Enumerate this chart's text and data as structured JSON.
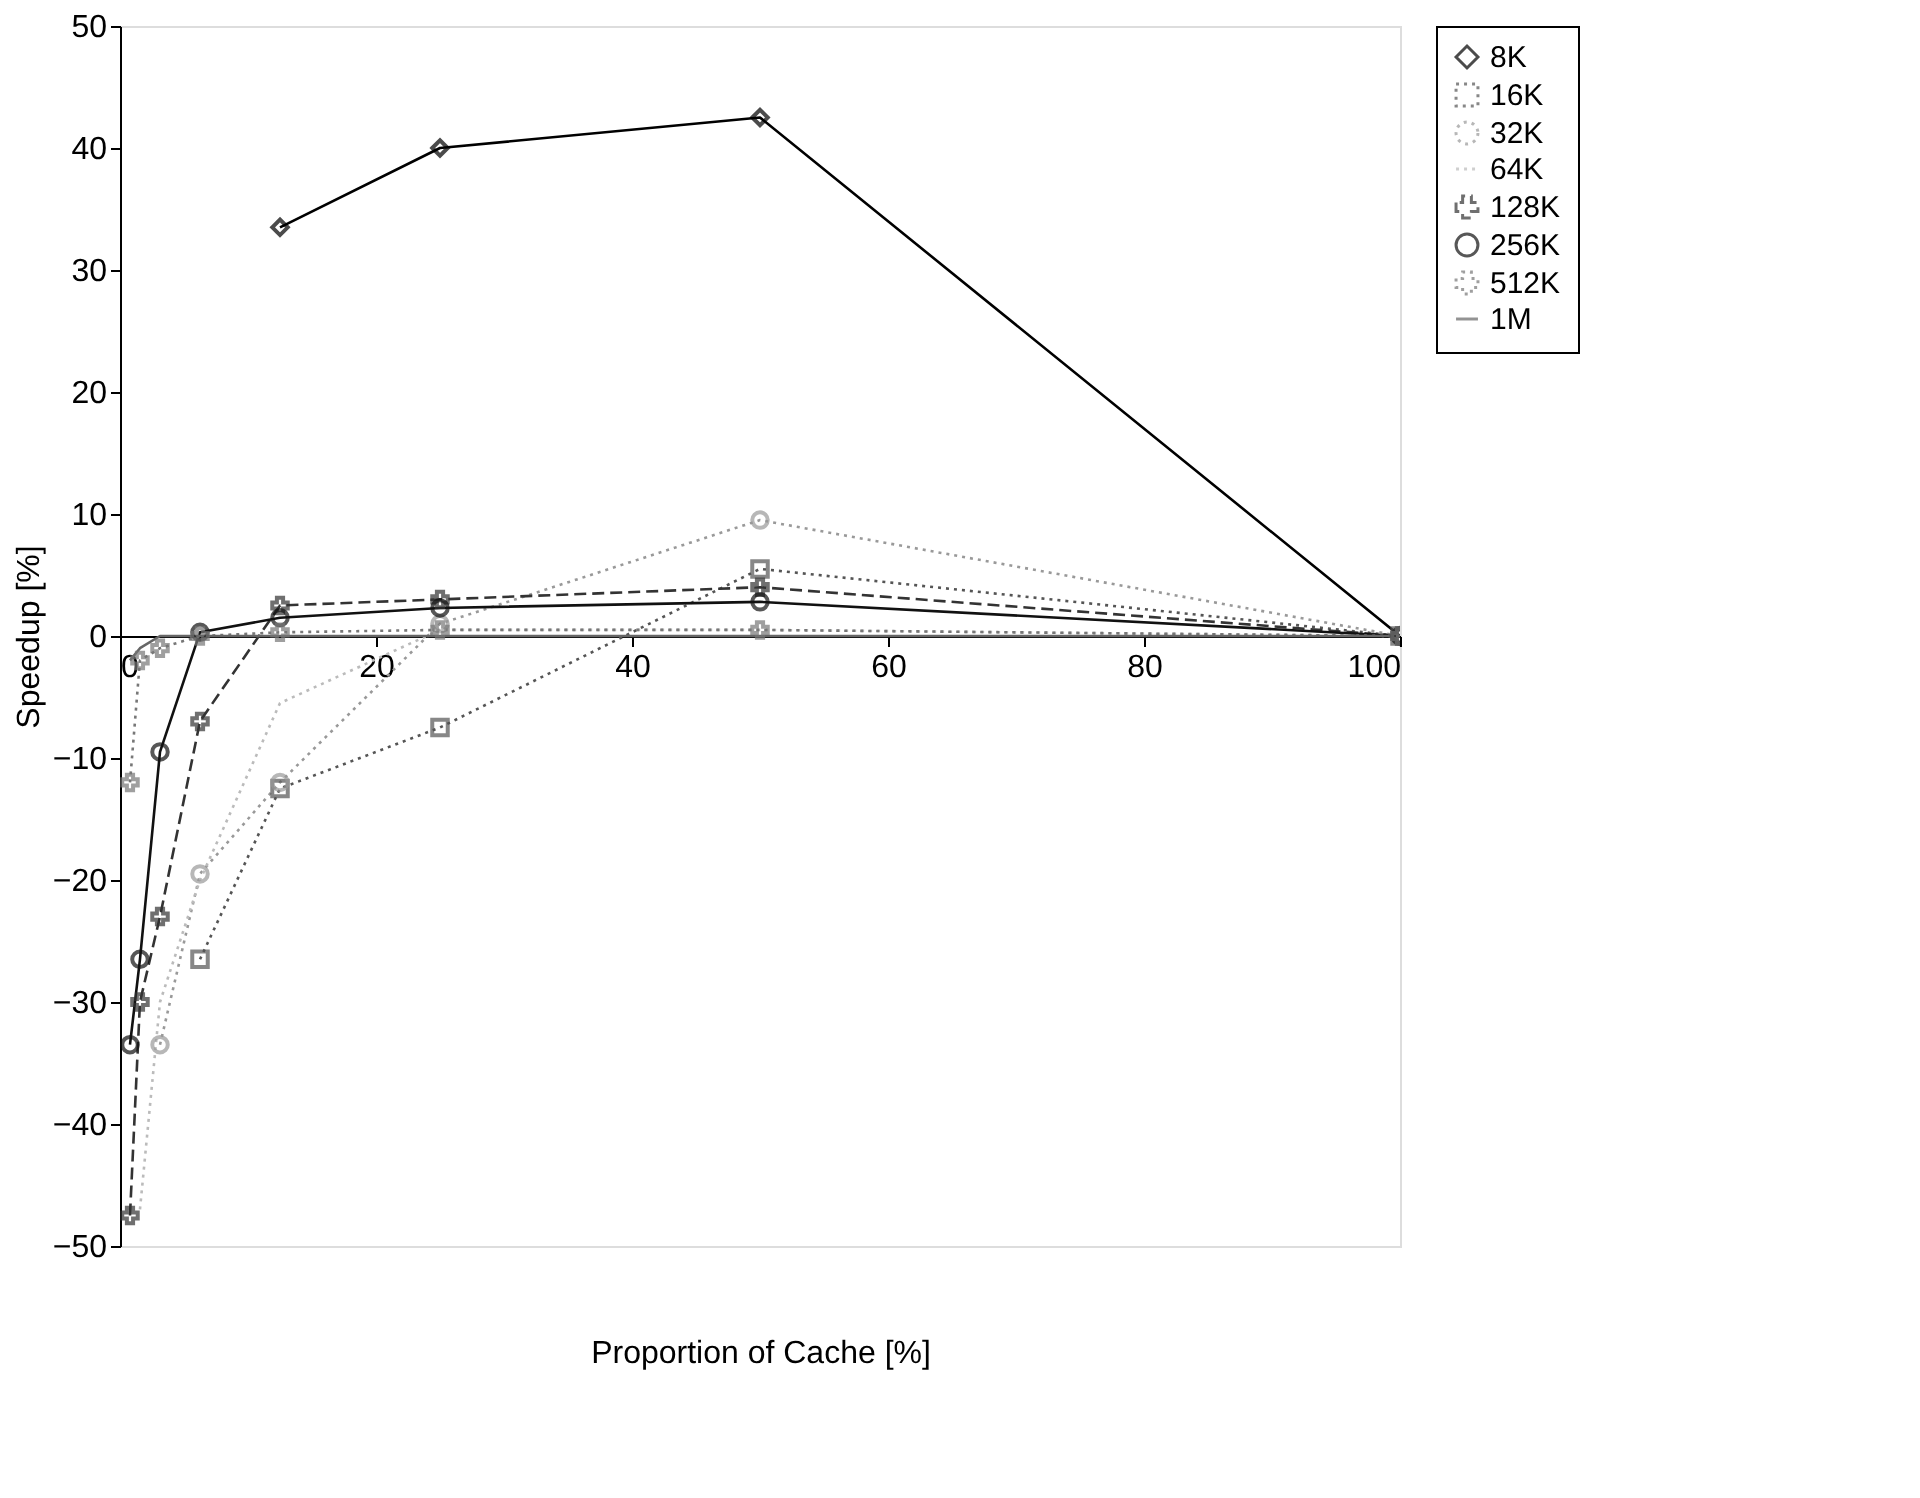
{
  "chart_data": {
    "type": "line",
    "xlabel": "Proportion of Cache [%]",
    "ylabel": "Speedup [%]",
    "xlim": [
      0,
      100
    ],
    "xticks": [
      0,
      20,
      40,
      60,
      80,
      100
    ],
    "ylim": [
      -50,
      50
    ],
    "yticks": [
      -50,
      -40,
      -30,
      -20,
      -10,
      0,
      10,
      20,
      30,
      40,
      50
    ],
    "grid": false,
    "legend": "right",
    "x": [
      0.78,
      1.56,
      3.125,
      6.25,
      12.5,
      25,
      50,
      100
    ],
    "series": [
      {
        "name": "8K",
        "color": "#000000",
        "marker": "diamond",
        "line_style": "solid",
        "values": [
          null,
          null,
          null,
          null,
          33.5,
          40,
          42.5,
          0
        ]
      },
      {
        "name": "16K",
        "color": "#555555",
        "marker": "square",
        "line_style": "dotted",
        "values": [
          null,
          null,
          null,
          -26.5,
          -12.5,
          -7.5,
          5.5,
          0
        ]
      },
      {
        "name": "32K",
        "color": "#999999",
        "marker": "circle",
        "line_style": "dotted",
        "values": [
          null,
          null,
          -33.5,
          -19.5,
          -12,
          1,
          9.5,
          0
        ]
      },
      {
        "name": "64K",
        "color": "#bbbbbb",
        "marker": "none",
        "line_style": "dotted",
        "values": [
          null,
          -47,
          -30,
          -20,
          -5.5,
          0.5,
          0.5,
          0
        ]
      },
      {
        "name": "128K",
        "color": "#333333",
        "marker": "cross",
        "line_style": "dashed",
        "values": [
          -47.5,
          -30,
          -23,
          -7,
          2.5,
          3,
          4,
          0
        ]
      },
      {
        "name": "256K",
        "color": "#111111",
        "marker": "circle",
        "line_style": "solid",
        "values": [
          -33.5,
          -26.5,
          -9.5,
          0.3,
          1.5,
          2.3,
          2.8,
          0
        ]
      },
      {
        "name": "512K",
        "color": "#777777",
        "marker": "cross",
        "line_style": "dotted",
        "values": [
          -12,
          -2,
          -1,
          0,
          0.3,
          0.5,
          0.5,
          0
        ]
      },
      {
        "name": "1M",
        "color": "#666666",
        "marker": "none",
        "line_style": "solid",
        "values": [
          -2,
          -1,
          0,
          0,
          0,
          0,
          0,
          0
        ]
      }
    ]
  }
}
